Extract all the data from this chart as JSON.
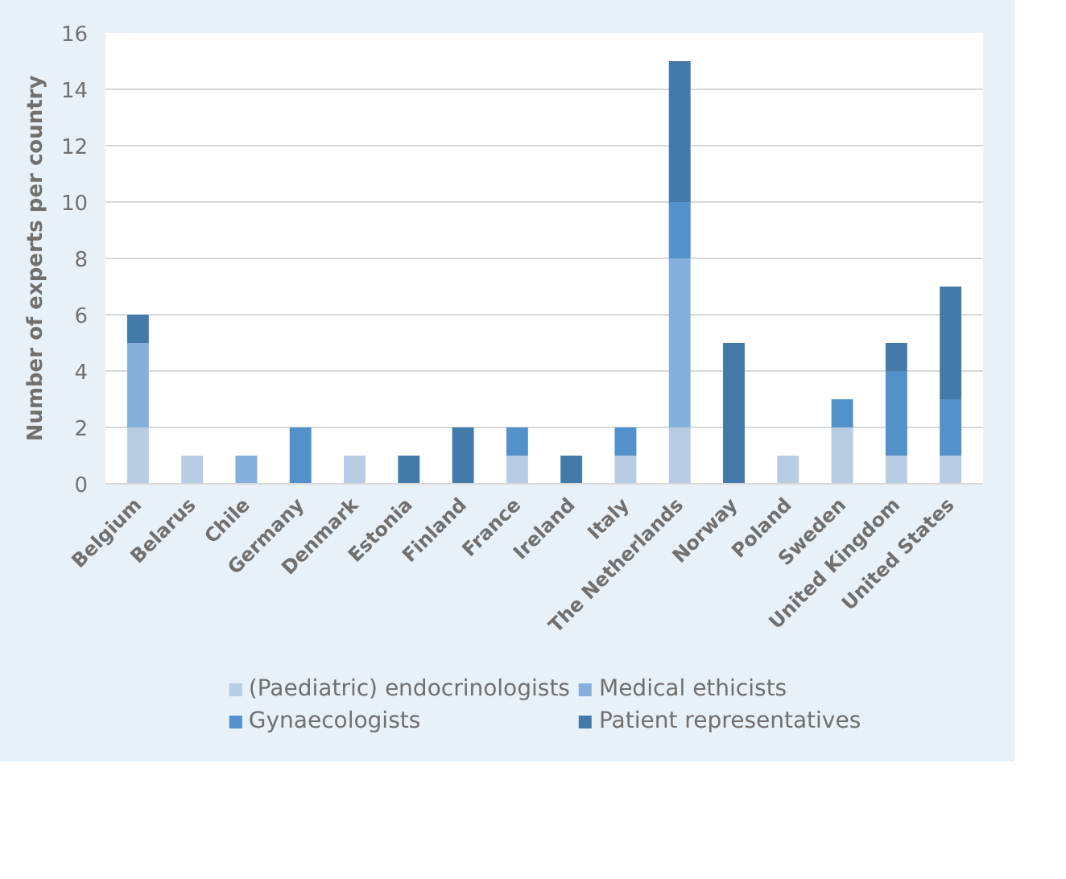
{
  "chart_data": {
    "type": "bar",
    "stacked": true,
    "ylabel": "Number of experts per country",
    "categories": [
      "Belgium",
      "Belarus",
      "Chile",
      "Germany",
      "Denmark",
      "Estonia",
      "Finland",
      "France",
      "Ireland",
      "Italy",
      "The Netherlands",
      "Norway",
      "Poland",
      "Sweden",
      "United Kingdom",
      "United States"
    ],
    "series": [
      {
        "name": "(Paediatric) endocrinologists",
        "color": "#b8cce4",
        "values": [
          2,
          1,
          0,
          0,
          1,
          0,
          0,
          1,
          0,
          1,
          2,
          0,
          1,
          2,
          1,
          1
        ]
      },
      {
        "name": "Medical ethicists",
        "color": "#85b0dc",
        "values": [
          3,
          0,
          1,
          0,
          0,
          0,
          0,
          0,
          0,
          0,
          6,
          0,
          0,
          0,
          0,
          0
        ]
      },
      {
        "name": "Gynaecologists",
        "color": "#5291c9",
        "values": [
          0,
          0,
          0,
          2,
          0,
          0,
          0,
          1,
          0,
          1,
          2,
          0,
          0,
          1,
          3,
          2
        ]
      },
      {
        "name": "Patient representatives",
        "color": "#437aa9",
        "values": [
          1,
          0,
          0,
          0,
          0,
          1,
          2,
          0,
          1,
          0,
          5,
          5,
          0,
          0,
          1,
          4
        ]
      }
    ],
    "ylim": [
      0,
      16
    ],
    "yticks": [
      0,
      2,
      4,
      6,
      8,
      10,
      12,
      14,
      16
    ],
    "grid": "y",
    "legend": "bottom"
  }
}
